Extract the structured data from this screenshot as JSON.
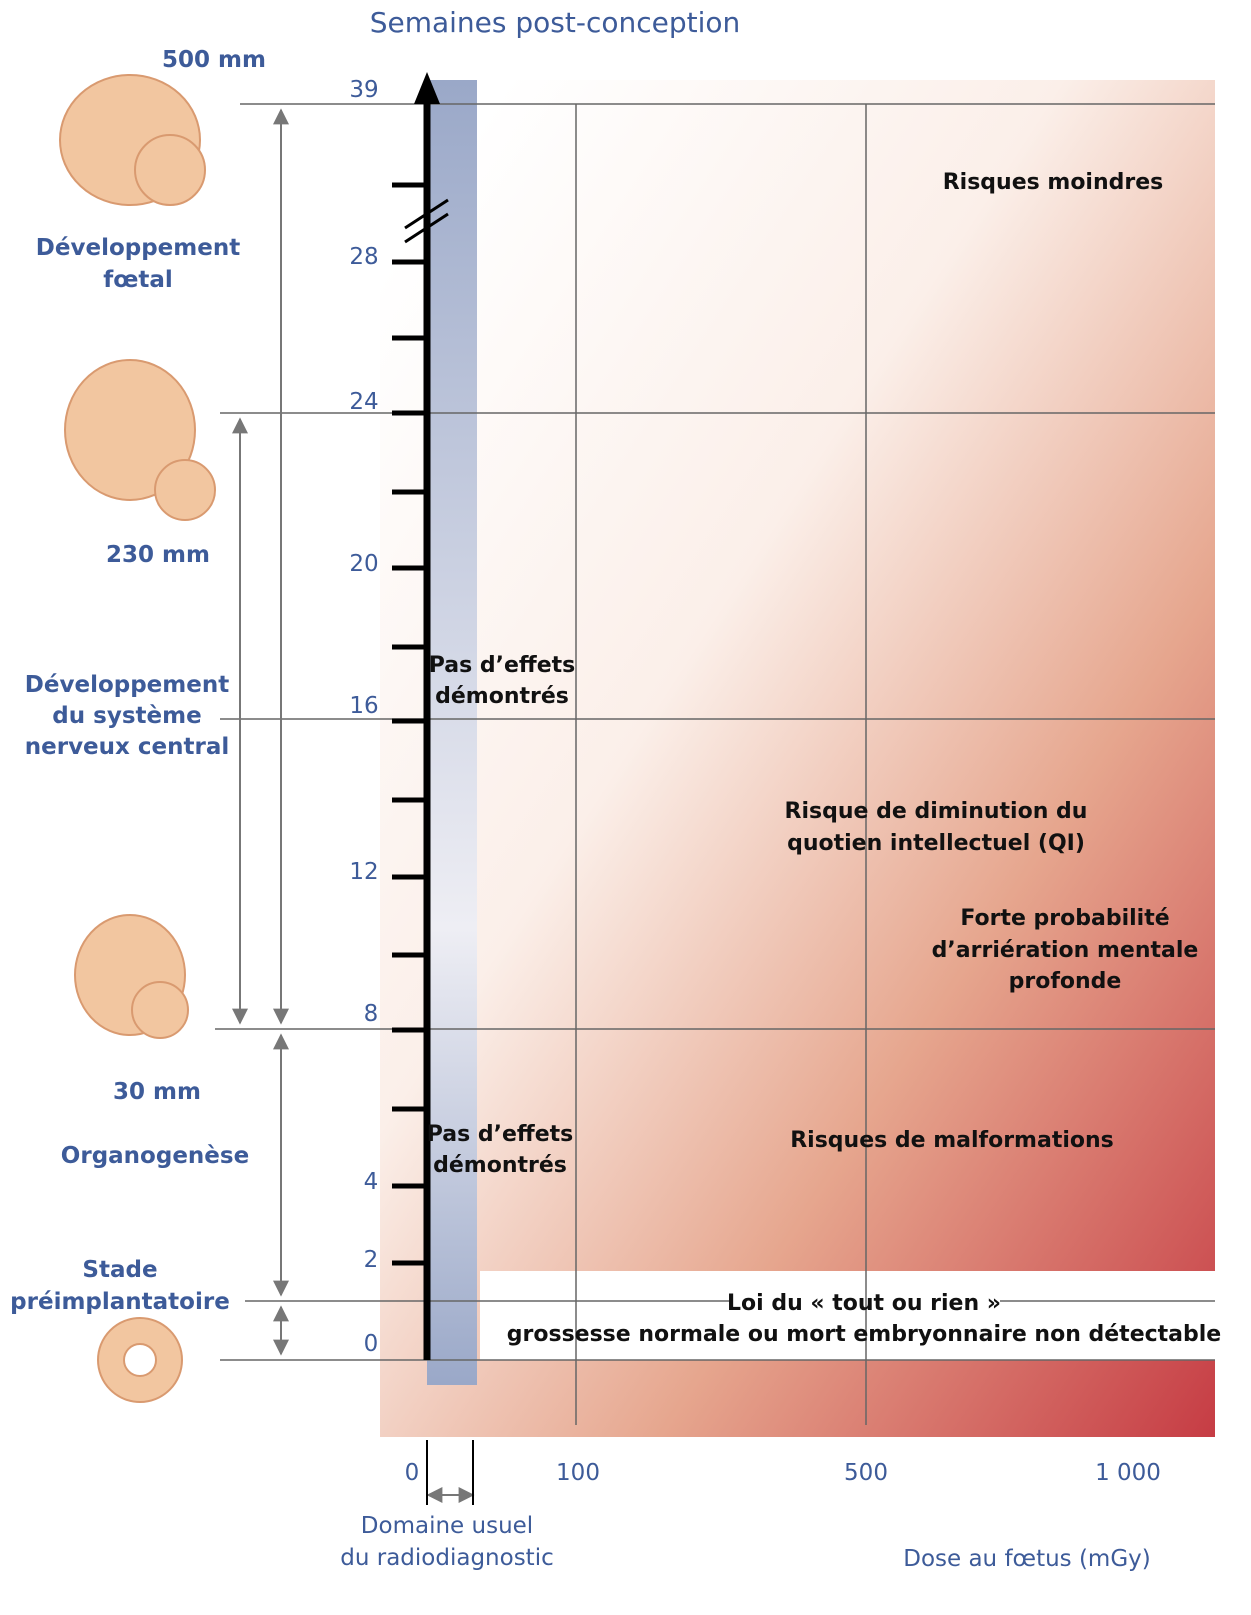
{
  "header": {
    "title": "Semaines post-conception"
  },
  "week_labels": [
    "39",
    "28",
    "24",
    "20",
    "16",
    "12",
    "8",
    "4",
    "2",
    "0"
  ],
  "dose_labels": [
    "0",
    "100",
    "500",
    "1 000"
  ],
  "stages": {
    "size_500": "500 mm",
    "fetal": [
      "Développement",
      "fœtal"
    ],
    "size_230": "230 mm",
    "cns": [
      "Développement",
      "du système",
      "nerveux central"
    ],
    "size_30": "30 mm",
    "organogenesis": "Organogenèse",
    "preimplant": [
      "Stade",
      "préimplantatoire"
    ]
  },
  "regions": {
    "lesser": "Risques moindres",
    "no_effect_1": [
      "Pas d’effets",
      "démontrés"
    ],
    "iq": [
      "Risque de diminution du",
      "quotien intellectuel (QI)"
    ],
    "retardation": [
      "Forte probabilité",
      "d’arriération mentale",
      "profonde"
    ],
    "no_effect_2": [
      "Pas d’effets",
      "démontrés"
    ],
    "malformations": "Risques de malformations",
    "all_or_nothing": [
      "Loi du « tout ou rien »",
      "grossesse normale ou mort embryonnaire non détectable"
    ]
  },
  "footer": {
    "usual_range": [
      "Domaine usuel",
      "du radiodiagnostic"
    ],
    "dose_axis": "Dose au fœtus (mGy)"
  }
}
